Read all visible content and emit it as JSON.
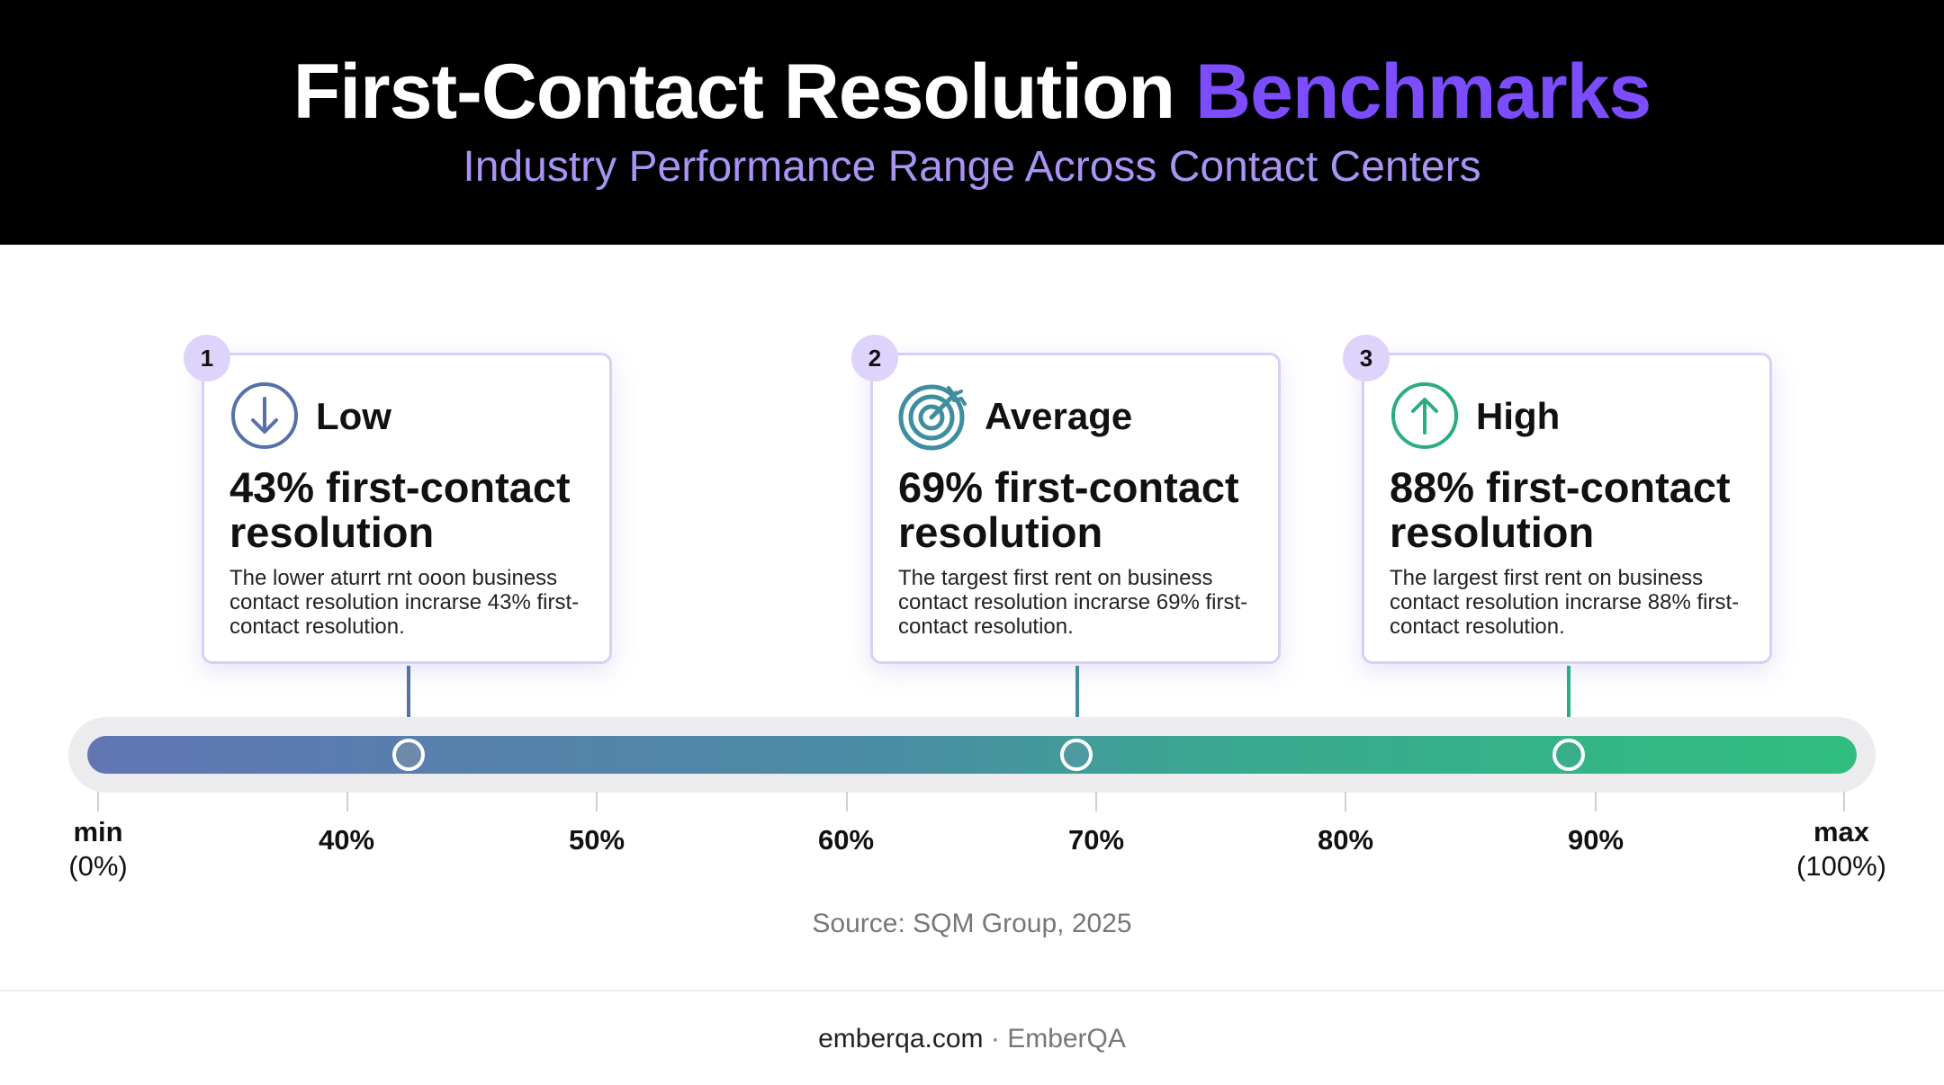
{
  "header": {
    "title_main": "First-Contact Resolution",
    "title_accent": "Benchmarks",
    "subtitle": "Industry Performance Range Across Contact Centers"
  },
  "colors": {
    "accent": "#7c4dff",
    "low": "#5670a8",
    "average": "#3f8ea0",
    "high": "#2aad7f"
  },
  "cards": [
    {
      "number": "1",
      "icon": "arrow-down-circle-icon",
      "label": "Low",
      "value": "43% first-contact resolution",
      "description": "The lower aturrt rnt ooon business contact resolution incrarse 43% first-contact resolution."
    },
    {
      "number": "2",
      "icon": "target-icon",
      "label": "Average",
      "value": "69% first-contact resolution",
      "description": "The targest first rent on business contact resolution incrarse 69% first-contact resolution."
    },
    {
      "number": "3",
      "icon": "arrow-up-circle-icon",
      "label": "High",
      "value": "88% first-contact resolution",
      "description": "The largest first rent on business contact resolution incrarse 88% first-contact resolution."
    }
  ],
  "scale": {
    "min_label": "min",
    "min_value": "(0%)",
    "max_label": "max",
    "max_value": "(100%)",
    "ticks": [
      "40%",
      "50%",
      "60%",
      "70%",
      "80%",
      "90%"
    ],
    "marker_values": [
      43,
      69,
      88
    ]
  },
  "source": "Source: SQM Group, 2025",
  "footer": {
    "site": "emberqa.com",
    "separator": " · ",
    "brand": "EmberQA"
  }
}
